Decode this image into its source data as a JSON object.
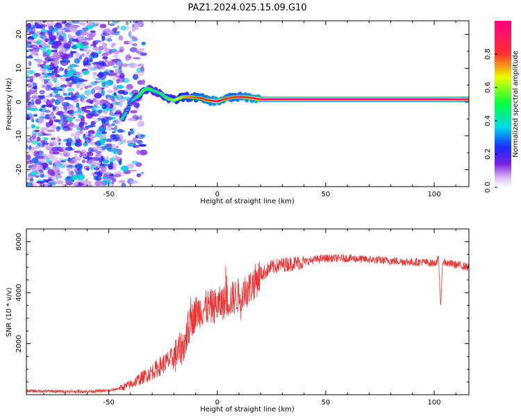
{
  "figure": {
    "title": "PAZ1.2024.025.15.09.G10"
  },
  "chart_data": [
    {
      "type": "heatmap",
      "title": "",
      "xlabel": "Height of straight line (km)",
      "ylabel": "Frequency (Hz)",
      "xlim": [
        -88,
        116
      ],
      "ylim": [
        -25,
        24
      ],
      "xticks": [
        -50,
        0,
        50,
        100
      ],
      "yticks": [
        -20,
        -10,
        0,
        10,
        20
      ],
      "colorbar": {
        "label": "Normalized spectral amplitude",
        "range": [
          0,
          1
        ],
        "ticks": [
          0.0,
          0.2,
          0.4,
          0.6,
          0.8
        ],
        "colormap": "rainbow (white-violet-blue-cyan-green-yellow-red-magenta)"
      },
      "ridge": {
        "description": "dominant spectral peak frequency vs height",
        "x": [
          -44,
          -42,
          -40,
          -38,
          -36,
          -34,
          -32,
          -30,
          -28,
          -26,
          -24,
          -22,
          -20,
          -16,
          -12,
          -8,
          -4,
          0,
          4,
          8,
          12,
          16,
          20,
          30,
          40,
          60,
          80,
          100,
          110,
          116
        ],
        "y": [
          -5,
          -3,
          0,
          1,
          2,
          3.5,
          4,
          3.5,
          3,
          2.5,
          1.5,
          0.8,
          0.5,
          1.5,
          1.5,
          1.2,
          0.5,
          0.2,
          1.0,
          1.5,
          1.5,
          1.2,
          0.8,
          0.8,
          0.8,
          0.8,
          0.8,
          0.8,
          0.8,
          0.8
        ],
        "amplitude": [
          0.45,
          0.35,
          0.3,
          0.4,
          0.5,
          0.55,
          0.5,
          0.5,
          0.45,
          0.45,
          0.5,
          0.55,
          0.6,
          0.7,
          0.75,
          0.8,
          0.85,
          0.95,
          0.85,
          0.8,
          0.85,
          0.9,
          0.95,
          0.97,
          0.98,
          0.98,
          0.98,
          0.98,
          0.95,
          0.9
        ]
      },
      "noise_region_x": [
        -88,
        -40
      ],
      "noise_amplitude_range": [
        0.0,
        0.35
      ]
    },
    {
      "type": "line",
      "title": "",
      "xlabel": "Height of straight line (km)",
      "ylabel": "SNR (10 * v/v)",
      "xlim": [
        -88,
        116
      ],
      "ylim": [
        0,
        6500
      ],
      "xticks": [
        -50,
        0,
        50,
        100
      ],
      "yticks": [
        2000,
        4000,
        6000
      ],
      "color": "#ee3333",
      "series": [
        {
          "x": [
            -88,
            -80,
            -70,
            -60,
            -50,
            -45,
            -40,
            -35,
            -30,
            -25,
            -20,
            -15,
            -12,
            -10,
            -8,
            -5,
            0,
            5,
            10,
            15,
            20,
            25,
            30,
            35,
            40,
            45,
            50,
            60,
            70,
            80,
            90,
            95,
            100,
            102,
            103,
            104,
            106,
            110,
            116
          ],
          "values": [
            150,
            140,
            130,
            130,
            160,
            250,
            400,
            650,
            900,
            1200,
            1450,
            2000,
            2900,
            3200,
            3300,
            3400,
            3500,
            3700,
            3900,
            4200,
            4700,
            5000,
            5100,
            5150,
            5200,
            5300,
            5350,
            5350,
            5300,
            5250,
            5200,
            5200,
            5150,
            5300,
            3500,
            5250,
            5150,
            5100,
            5000
          ]
        }
      ]
    }
  ]
}
